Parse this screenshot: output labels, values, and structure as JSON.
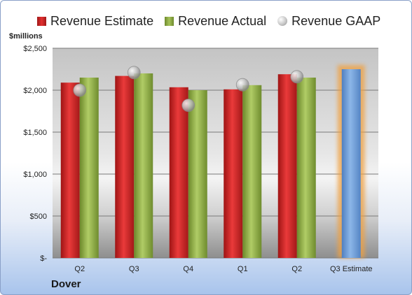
{
  "chart_data": {
    "type": "bar",
    "title": "",
    "xlabel": "",
    "ylabel": "$millions",
    "company": "Dover",
    "categories": [
      "Q2",
      "Q3",
      "Q4",
      "Q1",
      "Q2",
      "Q3 Estimate"
    ],
    "ylim": [
      0,
      2500
    ],
    "yticks": [
      0,
      500,
      1000,
      1500,
      2000,
      2500
    ],
    "ytick_labels": [
      "$-",
      "$500",
      "$1,000",
      "$1,500",
      "$2,000",
      "$2,500"
    ],
    "grid": true,
    "legend_position": "top",
    "series": [
      {
        "name": "Revenue Estimate",
        "kind": "bar",
        "color": "#d42a2a",
        "values": [
          2090,
          2170,
          2035,
          2010,
          2190,
          null
        ]
      },
      {
        "name": "Revenue Actual",
        "kind": "bar",
        "color": "#8fb04a",
        "values": [
          2150,
          2200,
          2000,
          2060,
          2150,
          null
        ]
      },
      {
        "name": "Revenue GAAP",
        "kind": "marker",
        "color": "#bdbdbd",
        "values": [
          2000,
          2210,
          1820,
          2065,
          2160,
          null
        ]
      },
      {
        "name": "Q3 Estimate",
        "kind": "bar",
        "color": "#6f9fd8",
        "highlight": "#f0a040",
        "values": [
          null,
          null,
          null,
          null,
          null,
          2250
        ]
      }
    ]
  }
}
